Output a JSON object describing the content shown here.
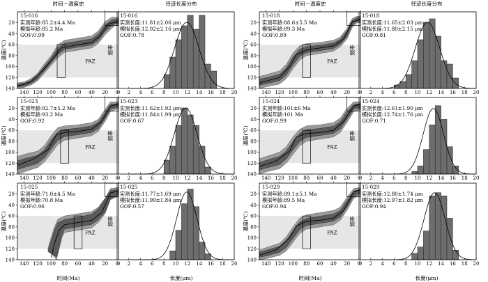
{
  "figure": {
    "th_title": "时间－温度史",
    "len_title": "径迹长度分布",
    "th_xlabel": "时间(Ma)",
    "th_ylabel": "温度(℃)",
    "len_xlabel": "长度(μm)",
    "len_ylabel": "频率",
    "paz_label": "PAZ"
  },
  "chart_data": [
    {
      "type": "area",
      "panel": "time-temperature",
      "sample": "15-016",
      "lines": [
        "实测年龄:85.2±4.4 Ma",
        "模拟年龄:85.2 Ma",
        "GOF:0.99"
      ],
      "xlim": [
        150,
        0
      ],
      "ylim": [
        0,
        140
      ],
      "x_ticks": [
        140,
        120,
        100,
        80,
        60,
        40,
        20,
        0
      ],
      "y_ticks": [
        20,
        40,
        60,
        80,
        100,
        120,
        140
      ],
      "paz": [
        60,
        120
      ],
      "x_reversed": true,
      "envelope_outer": [
        [
          150,
          130
        ],
        [
          140,
          128
        ],
        [
          130,
          122
        ],
        [
          120,
          112
        ],
        [
          110,
          95
        ],
        [
          100,
          80
        ],
        [
          90,
          60
        ],
        [
          80,
          52
        ],
        [
          60,
          48
        ],
        [
          40,
          44
        ],
        [
          30,
          35
        ],
        [
          20,
          18
        ],
        [
          10,
          10
        ],
        [
          5,
          10
        ],
        [
          0,
          10
        ]
      ],
      "envelope_inner": [
        [
          150,
          140
        ],
        [
          140,
          138
        ],
        [
          130,
          134
        ],
        [
          120,
          126
        ],
        [
          110,
          112
        ],
        [
          100,
          98
        ],
        [
          90,
          84
        ],
        [
          80,
          74
        ],
        [
          60,
          70
        ],
        [
          40,
          66
        ],
        [
          30,
          58
        ],
        [
          20,
          42
        ],
        [
          10,
          30
        ],
        [
          5,
          25
        ],
        [
          0,
          25
        ]
      ],
      "best_path": [
        [
          150,
          136
        ],
        [
          130,
          128
        ],
        [
          110,
          104
        ],
        [
          95,
          82
        ],
        [
          85,
          66
        ],
        [
          60,
          60
        ],
        [
          40,
          56
        ],
        [
          28,
          45
        ],
        [
          15,
          22
        ],
        [
          0,
          18
        ]
      ]
    },
    {
      "type": "bar",
      "panel": "length-distribution",
      "sample": "15-016",
      "lines": [
        "实测长度:11.81±2.06 μm",
        "模拟长度:12.02±2.16 μm",
        "GOF:0.78"
      ],
      "xlim": [
        0,
        20
      ],
      "x_ticks": [
        0,
        2,
        4,
        6,
        8,
        10,
        12,
        14,
        16,
        18,
        20
      ],
      "categories": [
        "8",
        "9",
        "10",
        "11",
        "12",
        "13",
        "14",
        "15",
        "16"
      ],
      "values": [
        0.04,
        0.09,
        0.14,
        0.18,
        0.21,
        0.17,
        0.21,
        0.07,
        0.05
      ],
      "ymax": 0.22,
      "fit_curve": {
        "mean": 11.9,
        "sd": 2.1,
        "peak": 0.19
      }
    },
    {
      "type": "area",
      "panel": "time-temperature",
      "sample": "15-018",
      "lines": [
        "实测年龄:88.6±5.5 Ma",
        "模拟年龄:89.3 Ma",
        "GOF:0.89"
      ],
      "xlim": [
        150,
        0
      ],
      "ylim": [
        0,
        140
      ],
      "x_ticks": [
        140,
        120,
        100,
        80,
        60,
        40,
        20,
        0
      ],
      "y_ticks": [
        20,
        40,
        60,
        80,
        100,
        120,
        140
      ],
      "paz": [
        60,
        120
      ],
      "x_reversed": true,
      "envelope_outer": [
        [
          150,
          118
        ],
        [
          140,
          115
        ],
        [
          120,
          108
        ],
        [
          110,
          96
        ],
        [
          100,
          75
        ],
        [
          90,
          62
        ],
        [
          80,
          58
        ],
        [
          60,
          56
        ],
        [
          40,
          52
        ],
        [
          30,
          46
        ],
        [
          20,
          30
        ],
        [
          12,
          12
        ],
        [
          5,
          8
        ],
        [
          0,
          8
        ]
      ],
      "envelope_inner": [
        [
          150,
          140
        ],
        [
          140,
          137
        ],
        [
          120,
          132
        ],
        [
          110,
          122
        ],
        [
          100,
          104
        ],
        [
          90,
          88
        ],
        [
          80,
          80
        ],
        [
          60,
          76
        ],
        [
          40,
          72
        ],
        [
          30,
          64
        ],
        [
          20,
          50
        ],
        [
          12,
          28
        ],
        [
          5,
          20
        ],
        [
          0,
          20
        ]
      ],
      "best_path": [
        [
          150,
          130
        ],
        [
          120,
          120
        ],
        [
          105,
          100
        ],
        [
          95,
          78
        ],
        [
          80,
          70
        ],
        [
          60,
          66
        ],
        [
          40,
          62
        ],
        [
          25,
          50
        ],
        [
          12,
          18
        ],
        [
          0,
          14
        ]
      ]
    },
    {
      "type": "bar",
      "panel": "length-distribution",
      "sample": "15-018",
      "lines": [
        "实测长度:11.65±2.03 μm",
        "模拟长度:11.80±2.15 μm",
        "GOF:0.81"
      ],
      "xlim": [
        0,
        20
      ],
      "x_ticks": [
        0,
        2,
        4,
        6,
        8,
        10,
        12,
        14,
        16,
        18,
        20
      ],
      "categories": [
        "6",
        "7",
        "8",
        "9",
        "10",
        "11",
        "12",
        "13",
        "14",
        "15",
        "16"
      ],
      "values": [
        0.01,
        0.02,
        0.04,
        0.08,
        0.14,
        0.19,
        0.2,
        0.15,
        0.08,
        0.07,
        0.03
      ],
      "ymax": 0.22,
      "fit_curve": {
        "mean": 11.7,
        "sd": 2.1,
        "peak": 0.19
      }
    },
    {
      "type": "area",
      "panel": "time-temperature",
      "sample": "15-023",
      "lines": [
        "实测年龄:92.7±5.2 Ma",
        "模拟年龄:93.2 Ma",
        "GOF:0.92"
      ],
      "xlim": [
        150,
        0
      ],
      "ylim": [
        0,
        140
      ],
      "x_ticks": [
        140,
        120,
        100,
        80,
        60,
        40,
        20,
        0
      ],
      "y_ticks": [
        20,
        40,
        60,
        80,
        100,
        120,
        140
      ],
      "paz": [
        60,
        120
      ],
      "x_reversed": true,
      "envelope_outer": [
        [
          150,
          108
        ],
        [
          140,
          104
        ],
        [
          120,
          98
        ],
        [
          110,
          88
        ],
        [
          100,
          70
        ],
        [
          90,
          55
        ],
        [
          80,
          52
        ],
        [
          60,
          50
        ],
        [
          40,
          46
        ],
        [
          30,
          40
        ],
        [
          20,
          22
        ],
        [
          12,
          8
        ],
        [
          0,
          8
        ]
      ],
      "envelope_inner": [
        [
          150,
          140
        ],
        [
          140,
          136
        ],
        [
          120,
          128
        ],
        [
          110,
          118
        ],
        [
          100,
          102
        ],
        [
          90,
          86
        ],
        [
          80,
          78
        ],
        [
          60,
          74
        ],
        [
          40,
          70
        ],
        [
          30,
          62
        ],
        [
          20,
          44
        ],
        [
          12,
          26
        ],
        [
          0,
          20
        ]
      ],
      "best_path": [
        [
          150,
          124
        ],
        [
          125,
          112
        ],
        [
          105,
          96
        ],
        [
          92,
          68
        ],
        [
          80,
          64
        ],
        [
          60,
          62
        ],
        [
          40,
          58
        ],
        [
          25,
          44
        ],
        [
          12,
          16
        ],
        [
          0,
          12
        ]
      ]
    },
    {
      "type": "bar",
      "panel": "length-distribution",
      "sample": "15-023",
      "lines": [
        "实测长度:11.62±1.92 μm",
        "模拟长度:11.84±1.99 μm",
        "GOF:0.67"
      ],
      "xlim": [
        0,
        20
      ],
      "x_ticks": [
        0,
        2,
        4,
        6,
        8,
        10,
        12,
        14,
        16,
        18,
        20
      ],
      "categories": [
        "8",
        "9",
        "10",
        "11",
        "12",
        "13",
        "14",
        "15"
      ],
      "values": [
        0.04,
        0.08,
        0.14,
        0.19,
        0.17,
        0.14,
        0.08,
        0.02
      ],
      "ymax": 0.22,
      "fit_curve": {
        "mean": 11.7,
        "sd": 1.95,
        "peak": 0.19
      }
    },
    {
      "type": "area",
      "panel": "time-temperature",
      "sample": "15-024",
      "lines": [
        "实测年龄:101±6 Ma",
        "模拟年龄:101 Ma",
        "GOF:0.99"
      ],
      "xlim": [
        150,
        0
      ],
      "ylim": [
        0,
        140
      ],
      "x_ticks": [
        140,
        120,
        100,
        80,
        60,
        40,
        20,
        0
      ],
      "y_ticks": [
        20,
        40,
        60,
        80,
        100,
        120,
        140
      ],
      "paz": [
        60,
        120
      ],
      "x_reversed": true,
      "envelope_outer": [
        [
          150,
          112
        ],
        [
          140,
          108
        ],
        [
          120,
          100
        ],
        [
          110,
          90
        ],
        [
          100,
          72
        ],
        [
          90,
          58
        ],
        [
          80,
          52
        ],
        [
          60,
          50
        ],
        [
          40,
          46
        ],
        [
          30,
          38
        ],
        [
          20,
          20
        ],
        [
          10,
          8
        ],
        [
          0,
          8
        ]
      ],
      "envelope_inner": [
        [
          150,
          140
        ],
        [
          140,
          136
        ],
        [
          120,
          130
        ],
        [
          110,
          120
        ],
        [
          100,
          104
        ],
        [
          90,
          88
        ],
        [
          80,
          80
        ],
        [
          60,
          76
        ],
        [
          40,
          72
        ],
        [
          30,
          64
        ],
        [
          20,
          46
        ],
        [
          10,
          26
        ],
        [
          0,
          22
        ]
      ],
      "best_path": [
        [
          150,
          126
        ],
        [
          125,
          116
        ],
        [
          105,
          98
        ],
        [
          95,
          72
        ],
        [
          80,
          66
        ],
        [
          60,
          64
        ],
        [
          40,
          60
        ],
        [
          25,
          44
        ],
        [
          10,
          16
        ],
        [
          0,
          12
        ]
      ]
    },
    {
      "type": "bar",
      "panel": "length-distribution",
      "sample": "15-024",
      "lines": [
        "实测长度:12.61±1.90 μm",
        "模拟长度:12.74±1.76 μm",
        "GOF:0.71"
      ],
      "xlim": [
        0,
        20
      ],
      "x_ticks": [
        0,
        2,
        4,
        6,
        8,
        10,
        12,
        14,
        16,
        18,
        20
      ],
      "categories": [
        "9",
        "10",
        "11",
        "12",
        "13",
        "14",
        "15",
        "16"
      ],
      "values": [
        0.01,
        0.03,
        0.09,
        0.18,
        0.25,
        0.2,
        0.1,
        0.03
      ],
      "ymax": 0.28,
      "fit_curve": {
        "mean": 12.7,
        "sd": 1.75,
        "peak": 0.24
      }
    },
    {
      "type": "area",
      "panel": "time-temperature",
      "sample": "15-025",
      "lines": [
        "实测年龄:71.0±4.5 Ma",
        "模拟年龄:70.8 Ma",
        "GOF:0.96"
      ],
      "xlim": [
        150,
        0
      ],
      "ylim": [
        0,
        140
      ],
      "x_ticks": [
        140,
        120,
        100,
        80,
        60,
        40,
        20,
        0
      ],
      "y_ticks": [
        20,
        40,
        60,
        80,
        100,
        120,
        140
      ],
      "paz": [
        60,
        120
      ],
      "x_reversed": true,
      "envelope_outer": [
        [
          105,
          120
        ],
        [
          100,
          100
        ],
        [
          95,
          80
        ],
        [
          90,
          66
        ],
        [
          80,
          60
        ],
        [
          60,
          56
        ],
        [
          40,
          52
        ],
        [
          30,
          44
        ],
        [
          20,
          28
        ],
        [
          12,
          10
        ],
        [
          0,
          8
        ]
      ],
      "envelope_inner": [
        [
          92,
          140
        ],
        [
          88,
          120
        ],
        [
          84,
          100
        ],
        [
          80,
          90
        ],
        [
          60,
          86
        ],
        [
          40,
          82
        ],
        [
          30,
          72
        ],
        [
          20,
          56
        ],
        [
          12,
          30
        ],
        [
          0,
          24
        ]
      ],
      "best_path": [
        [
          100,
          136
        ],
        [
          95,
          110
        ],
        [
          88,
          86
        ],
        [
          80,
          76
        ],
        [
          60,
          72
        ],
        [
          40,
          68
        ],
        [
          25,
          54
        ],
        [
          12,
          18
        ],
        [
          0,
          14
        ]
      ]
    },
    {
      "type": "bar",
      "panel": "length-distribution",
      "sample": "15-025",
      "lines": [
        "实测长度:11.77±1.69 μm",
        "模拟长度:11.99±1.84 μm",
        "GOF:0.57"
      ],
      "xlim": [
        0,
        20
      ],
      "x_ticks": [
        0,
        2,
        4,
        6,
        8,
        10,
        12,
        14,
        16,
        18,
        20
      ],
      "categories": [
        "9",
        "10",
        "11",
        "12",
        "13",
        "14",
        "15"
      ],
      "values": [
        0.03,
        0.1,
        0.19,
        0.24,
        0.18,
        0.06,
        0.02
      ],
      "ymax": 0.26,
      "fit_curve": {
        "mean": 11.9,
        "sd": 1.75,
        "peak": 0.23
      }
    },
    {
      "type": "area",
      "panel": "time-temperature",
      "sample": "15-029",
      "lines": [
        "实测年龄:89.1±5.1 Ma",
        "模拟年龄:89.5 Ma",
        "GOF:0.94"
      ],
      "xlim": [
        150,
        0
      ],
      "ylim": [
        0,
        140
      ],
      "x_ticks": [
        140,
        120,
        100,
        80,
        60,
        40,
        20,
        0
      ],
      "y_ticks": [
        20,
        40,
        60,
        80,
        100,
        120,
        140
      ],
      "paz": [
        60,
        120
      ],
      "x_reversed": true,
      "envelope_outer": [
        [
          150,
          122
        ],
        [
          140,
          118
        ],
        [
          120,
          110
        ],
        [
          110,
          98
        ],
        [
          100,
          80
        ],
        [
          90,
          64
        ],
        [
          80,
          58
        ],
        [
          60,
          54
        ],
        [
          40,
          50
        ],
        [
          30,
          44
        ],
        [
          20,
          26
        ],
        [
          10,
          10
        ],
        [
          0,
          8
        ]
      ],
      "envelope_inner": [
        [
          150,
          140
        ],
        [
          140,
          138
        ],
        [
          120,
          132
        ],
        [
          110,
          124
        ],
        [
          100,
          108
        ],
        [
          90,
          92
        ],
        [
          80,
          84
        ],
        [
          60,
          80
        ],
        [
          40,
          76
        ],
        [
          30,
          68
        ],
        [
          20,
          50
        ],
        [
          10,
          28
        ],
        [
          0,
          22
        ]
      ],
      "best_path": [
        [
          150,
          132
        ],
        [
          125,
          122
        ],
        [
          105,
          100
        ],
        [
          95,
          78
        ],
        [
          80,
          70
        ],
        [
          60,
          68
        ],
        [
          40,
          64
        ],
        [
          25,
          50
        ],
        [
          10,
          16
        ],
        [
          0,
          12
        ]
      ]
    },
    {
      "type": "bar",
      "panel": "length-distribution",
      "sample": "15-029",
      "lines": [
        "实测长度:12.80±1.74 μm",
        "模拟长度:12.97±1.82 μm",
        "GOF:0.94"
      ],
      "xlim": [
        0,
        20
      ],
      "x_ticks": [
        0,
        2,
        4,
        6,
        8,
        10,
        12,
        14,
        16,
        18,
        20
      ],
      "categories": [
        "9",
        "10",
        "11",
        "12",
        "13",
        "14",
        "15",
        "16"
      ],
      "values": [
        0.02,
        0.04,
        0.09,
        0.2,
        0.21,
        0.2,
        0.13,
        0.03
      ],
      "ymax": 0.24,
      "fit_curve": {
        "mean": 12.9,
        "sd": 1.8,
        "peak": 0.21
      }
    }
  ]
}
